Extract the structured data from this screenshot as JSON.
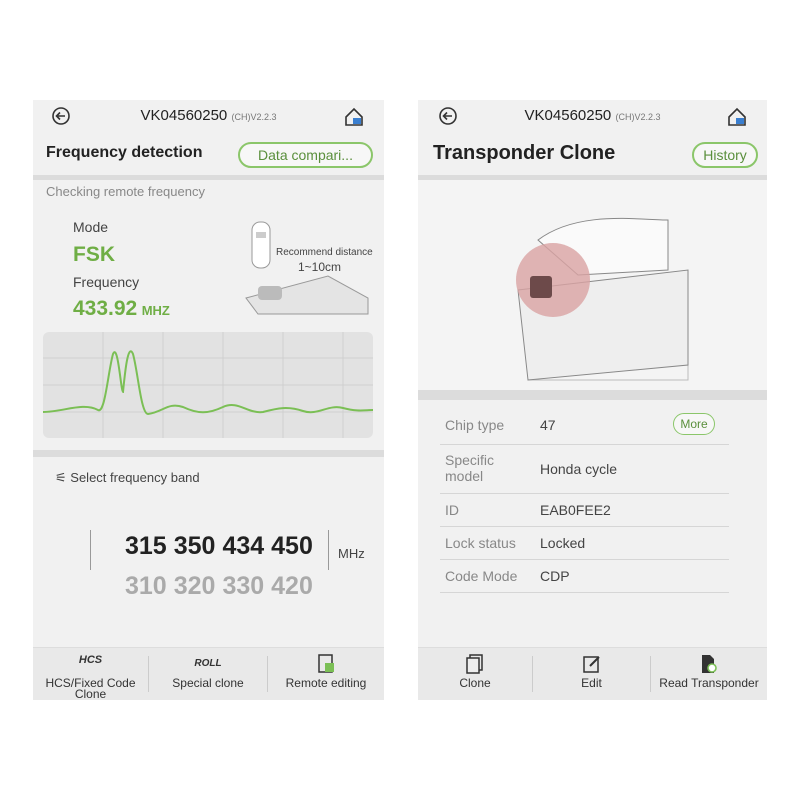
{
  "screens": [
    {
      "header": {
        "device": "VK04560250",
        "version": "(CH)V2.2.3"
      },
      "title": "Frequency detection",
      "button": "Data compari...",
      "status": "Checking remote frequency",
      "mode": {
        "label": "Mode",
        "value": "FSK"
      },
      "frequency": {
        "label": "Frequency",
        "value": 433.92,
        "unit": "MHZ"
      },
      "hint": {
        "label": "Recommend distance",
        "value": "1~10cm"
      },
      "band": {
        "label": "Select frequency band",
        "selected": [
          315,
          350,
          434,
          450
        ],
        "other": [
          310,
          320,
          330,
          420
        ],
        "unit": "MHz"
      },
      "toolbar": [
        {
          "icon": "HCS",
          "label": "HCS/Fixed Code Clone"
        },
        {
          "icon": "ROLL",
          "label": "Special clone"
        },
        {
          "label": "Remote editing"
        }
      ]
    },
    {
      "header": {
        "device": "VK04560250",
        "version": "(CH)V2.2.3"
      },
      "title": "Transponder Clone",
      "button": "History",
      "rows": [
        {
          "label": "Chip type",
          "value": 47,
          "action": "More"
        },
        {
          "label": "Specific model",
          "value": "Honda cycle"
        },
        {
          "label": "ID",
          "value": "EAB0FEE2"
        },
        {
          "label": "Lock status",
          "value": "Locked"
        },
        {
          "label": "Code Mode",
          "value": "CDP"
        }
      ],
      "toolbar": [
        {
          "label": "Clone"
        },
        {
          "label": "Edit"
        },
        {
          "label": "Read Transponder"
        }
      ]
    }
  ]
}
